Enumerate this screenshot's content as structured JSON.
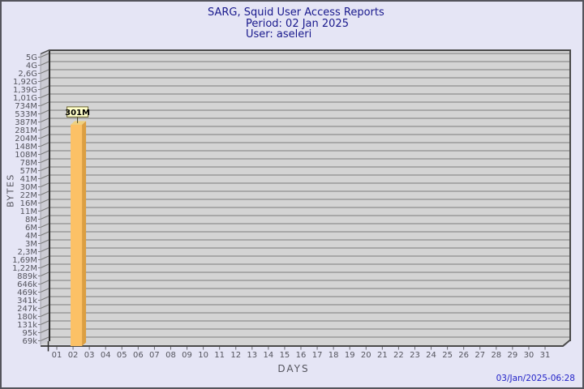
{
  "title": {
    "line1": "SARG, Squid User Access Reports",
    "line2": "Period: 02 Jan 2025",
    "line3": "User: aseleri"
  },
  "y_axis": {
    "title": "BYTES",
    "ticks": [
      "5G",
      "4G",
      "2,6G",
      "1,92G",
      "1,39G",
      "1,01G",
      "734M",
      "533M",
      "387M",
      "281M",
      "204M",
      "148M",
      "108M",
      "78M",
      "57M",
      "41M",
      "30M",
      "22M",
      "16M",
      "11M",
      "8M",
      "6M",
      "4M",
      "3M",
      "2,3M",
      "1,69M",
      "1,22M",
      "889k",
      "646k",
      "469k",
      "341k",
      "247k",
      "180k",
      "131k",
      "95k",
      "69k"
    ]
  },
  "x_axis": {
    "title": "DAYS",
    "ticks": [
      "01",
      "02",
      "03",
      "04",
      "05",
      "06",
      "07",
      "08",
      "09",
      "10",
      "11",
      "12",
      "13",
      "14",
      "15",
      "16",
      "17",
      "18",
      "19",
      "20",
      "21",
      "22",
      "23",
      "24",
      "25",
      "26",
      "27",
      "28",
      "29",
      "30",
      "31"
    ]
  },
  "footer": {
    "timestamp": "03/Jan/2025-06:28"
  },
  "chart_data": {
    "type": "bar",
    "title": "SARG, Squid User Access Reports",
    "xlabel": "DAYS",
    "ylabel": "BYTES",
    "y_scale": "log",
    "y_tick_labels": [
      "5G",
      "4G",
      "2,6G",
      "1,92G",
      "1,39G",
      "1,01G",
      "734M",
      "533M",
      "387M",
      "281M",
      "204M",
      "148M",
      "108M",
      "78M",
      "57M",
      "41M",
      "30M",
      "22M",
      "16M",
      "11M",
      "8M",
      "6M",
      "4M",
      "3M",
      "2,3M",
      "1,69M",
      "1,22M",
      "889k",
      "646k",
      "469k",
      "341k",
      "247k",
      "180k",
      "131k",
      "95k",
      "69k"
    ],
    "categories": [
      "01",
      "02",
      "03",
      "04",
      "05",
      "06",
      "07",
      "08",
      "09",
      "10",
      "11",
      "12",
      "13",
      "14",
      "15",
      "16",
      "17",
      "18",
      "19",
      "20",
      "21",
      "22",
      "23",
      "24",
      "25",
      "26",
      "27",
      "28",
      "29",
      "30",
      "31"
    ],
    "bars": [
      {
        "day": "02",
        "value_label": "301M"
      }
    ],
    "grid": true,
    "legend": "none"
  },
  "colors": {
    "page_background": "#E5E5F5",
    "plot_background": "#D4D4D4",
    "wall_background": "#CBCBD3",
    "gridline": "#7B7B7B",
    "frame_dark": "#4A4A4A",
    "axis_text": "#55555E",
    "title_text": "#18188C",
    "timestamp_text": "#2222C8",
    "bar_face": "#FCC166",
    "bar_side": "#DC9F42",
    "bar_top": "#EFD07E",
    "anno_box_fill": "#FFFFC9",
    "anno_box_border": "#6B6530"
  }
}
